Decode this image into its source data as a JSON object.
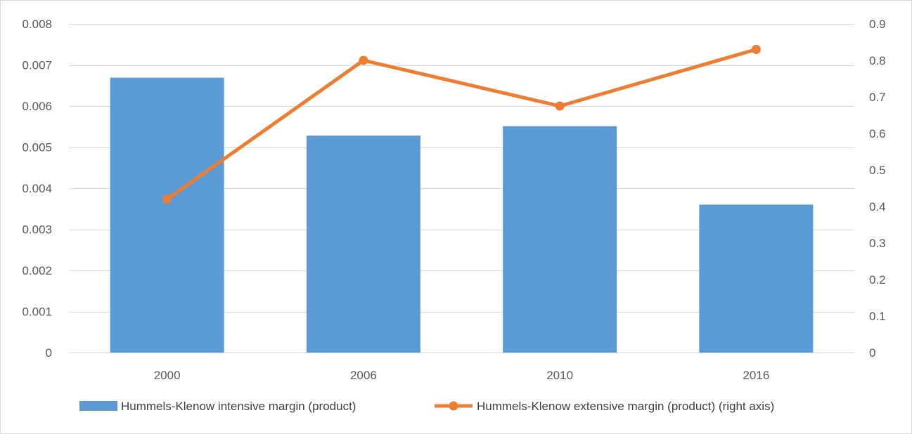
{
  "chart_data": {
    "type": "bar",
    "categories": [
      "2000",
      "2006",
      "2010",
      "2016"
    ],
    "series": [
      {
        "name": "Hummels-Klenow intensive margin (product)",
        "type": "bar",
        "axis": "left",
        "color": "#5B9BD5",
        "values": [
          0.00669,
          0.00528,
          0.00551,
          0.0036
        ]
      },
      {
        "name": "Hummels-Klenow extensive margin (product) (right axis)",
        "type": "line",
        "axis": "right",
        "color": "#ED7D31",
        "values": [
          0.42,
          0.8,
          0.675,
          0.83
        ]
      }
    ],
    "y_left": {
      "ylim": [
        0,
        0.008
      ],
      "ticks": [
        0,
        0.001,
        0.002,
        0.003,
        0.004,
        0.005,
        0.006,
        0.007,
        0.008
      ],
      "tick_labels": [
        "0",
        "0.001",
        "0.002",
        "0.003",
        "0.004",
        "0.005",
        "0.006",
        "0.007",
        "0.008"
      ]
    },
    "y_right": {
      "ylim": [
        0,
        0.9
      ],
      "ticks": [
        0,
        0.1,
        0.2,
        0.3,
        0.4,
        0.5,
        0.6,
        0.7,
        0.8,
        0.9
      ],
      "tick_labels": [
        "0",
        "0.1",
        "0.2",
        "0.3",
        "0.4",
        "0.5",
        "0.6",
        "0.7",
        "0.8",
        "0.9"
      ]
    },
    "grid": true,
    "legend": "bottom"
  }
}
